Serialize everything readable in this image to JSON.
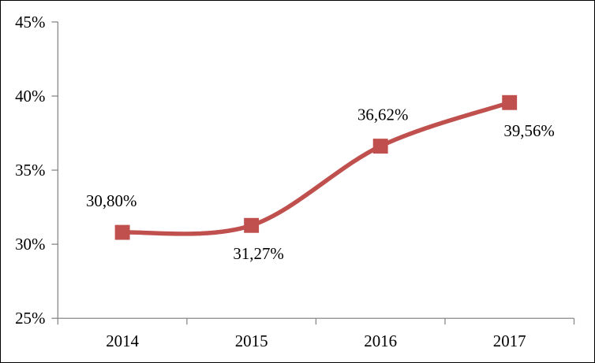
{
  "chart": {
    "background": "#FFFFFF",
    "border_color": "#000000",
    "axis_color": "#898989",
    "text_color": "#000000",
    "accent_color": "#C0504D"
  },
  "chart_data": {
    "type": "line",
    "title": "",
    "xlabel": "",
    "ylabel": "",
    "categories": [
      "2014",
      "2015",
      "2016",
      "2017"
    ],
    "series": [
      {
        "values": [
          30.8,
          31.27,
          36.62,
          39.56
        ],
        "data_labels": [
          "30,80%",
          "31,27%",
          "36,62%",
          "39,56%"
        ],
        "label_positions": [
          "above",
          "below",
          "above",
          "below"
        ],
        "color": "#C0504D",
        "marker": "square",
        "smooth": true
      }
    ],
    "ylim": [
      25,
      45
    ],
    "ytick_step": 5,
    "ytick_labels": [
      "25%",
      "30%",
      "35%",
      "40%",
      "45%"
    ],
    "grid": false,
    "legend": "none"
  }
}
